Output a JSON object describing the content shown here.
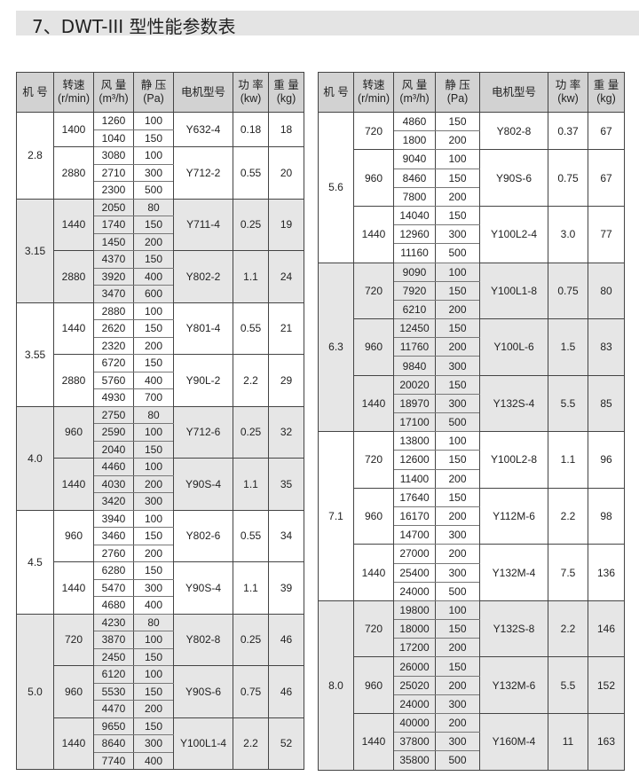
{
  "title": "7、DWT-III 型性能参数表",
  "headers": [
    "机 号",
    "转速\n(r/min)",
    "风 量\n(m³/h)",
    "静 压\n(Pa)",
    "电机型号",
    "功 率\n(kw)",
    "重 量\n(kg)"
  ],
  "left_table": [
    {
      "model": "2.8",
      "speeds": [
        {
          "rpm": "1400",
          "rows": [
            [
              "1260",
              "100"
            ],
            [
              "1040",
              "150"
            ]
          ],
          "motor": "Y632-4",
          "power": "0.18",
          "weight": "18"
        },
        {
          "rpm": "2880",
          "rows": [
            [
              "3080",
              "100"
            ],
            [
              "2710",
              "300"
            ],
            [
              "2300",
              "500"
            ]
          ],
          "motor": "Y712-2",
          "power": "0.55",
          "weight": "20"
        }
      ]
    },
    {
      "model": "3.15",
      "speeds": [
        {
          "rpm": "1440",
          "rows": [
            [
              "2050",
              "80"
            ],
            [
              "1740",
              "150"
            ],
            [
              "1450",
              "200"
            ]
          ],
          "motor": "Y711-4",
          "power": "0.25",
          "weight": "19"
        },
        {
          "rpm": "2880",
          "rows": [
            [
              "4370",
              "150"
            ],
            [
              "3920",
              "400"
            ],
            [
              "3470",
              "600"
            ]
          ],
          "motor": "Y802-2",
          "power": "1.1",
          "weight": "24"
        }
      ]
    },
    {
      "model": "3.55",
      "speeds": [
        {
          "rpm": "1440",
          "rows": [
            [
              "2880",
              "100"
            ],
            [
              "2620",
              "150"
            ],
            [
              "2320",
              "200"
            ]
          ],
          "motor": "Y801-4",
          "power": "0.55",
          "weight": "21"
        },
        {
          "rpm": "2880",
          "rows": [
            [
              "6720",
              "150"
            ],
            [
              "5760",
              "400"
            ],
            [
              "4930",
              "700"
            ]
          ],
          "motor": "Y90L-2",
          "power": "2.2",
          "weight": "29"
        }
      ]
    },
    {
      "model": "4.0",
      "speeds": [
        {
          "rpm": "960",
          "rows": [
            [
              "2750",
              "80"
            ],
            [
              "2590",
              "100"
            ],
            [
              "2040",
              "150"
            ]
          ],
          "motor": "Y712-6",
          "power": "0.25",
          "weight": "32"
        },
        {
          "rpm": "1440",
          "rows": [
            [
              "4460",
              "100"
            ],
            [
              "4030",
              "200"
            ],
            [
              "3420",
              "300"
            ]
          ],
          "motor": "Y90S-4",
          "power": "1.1",
          "weight": "35"
        }
      ]
    },
    {
      "model": "4.5",
      "speeds": [
        {
          "rpm": "960",
          "rows": [
            [
              "3940",
              "100"
            ],
            [
              "3460",
              "150"
            ],
            [
              "2760",
              "200"
            ]
          ],
          "motor": "Y802-6",
          "power": "0.55",
          "weight": "34"
        },
        {
          "rpm": "1440",
          "rows": [
            [
              "6280",
              "150"
            ],
            [
              "5470",
              "300"
            ],
            [
              "4680",
              "400"
            ]
          ],
          "motor": "Y90S-4",
          "power": "1.1",
          "weight": "39"
        }
      ]
    },
    {
      "model": "5.0",
      "speeds": [
        {
          "rpm": "720",
          "rows": [
            [
              "4230",
              "80"
            ],
            [
              "3870",
              "100"
            ],
            [
              "2450",
              "150"
            ]
          ],
          "motor": "Y802-8",
          "power": "0.25",
          "weight": "46"
        },
        {
          "rpm": "960",
          "rows": [
            [
              "6120",
              "100"
            ],
            [
              "5530",
              "150"
            ],
            [
              "4470",
              "200"
            ]
          ],
          "motor": "Y90S-6",
          "power": "0.75",
          "weight": "46"
        },
        {
          "rpm": "1440",
          "rows": [
            [
              "9650",
              "150"
            ],
            [
              "8640",
              "300"
            ],
            [
              "7740",
              "400"
            ]
          ],
          "motor": "Y100L1-4",
          "power": "2.2",
          "weight": "52"
        }
      ]
    }
  ],
  "right_table": [
    {
      "model": "5.6",
      "speeds": [
        {
          "rpm": "720",
          "rows": [
            [
              "4860",
              "150"
            ],
            [
              "1800",
              "200"
            ]
          ],
          "motor": "Y802-8",
          "power": "0.37",
          "weight": "67"
        },
        {
          "rpm": "960",
          "rows": [
            [
              "9040",
              "100"
            ],
            [
              "8460",
              "150"
            ],
            [
              "7800",
              "200"
            ]
          ],
          "motor": "Y90S-6",
          "power": "0.75",
          "weight": "67"
        },
        {
          "rpm": "1440",
          "rows": [
            [
              "14040",
              "150"
            ],
            [
              "12960",
              "300"
            ],
            [
              "11160",
              "500"
            ]
          ],
          "motor": "Y100L2-4",
          "power": "3.0",
          "weight": "77"
        }
      ]
    },
    {
      "model": "6.3",
      "speeds": [
        {
          "rpm": "720",
          "rows": [
            [
              "9090",
              "100"
            ],
            [
              "7920",
              "150"
            ],
            [
              "6210",
              "200"
            ]
          ],
          "motor": "Y100L1-8",
          "power": "0.75",
          "weight": "80"
        },
        {
          "rpm": "960",
          "rows": [
            [
              "12450",
              "150"
            ],
            [
              "11760",
              "200"
            ],
            [
              "9840",
              "300"
            ]
          ],
          "motor": "Y100L-6",
          "power": "1.5",
          "weight": "83"
        },
        {
          "rpm": "1440",
          "rows": [
            [
              "20020",
              "150"
            ],
            [
              "18970",
              "300"
            ],
            [
              "17100",
              "500"
            ]
          ],
          "motor": "Y132S-4",
          "power": "5.5",
          "weight": "85"
        }
      ]
    },
    {
      "model": "7.1",
      "speeds": [
        {
          "rpm": "720",
          "rows": [
            [
              "13800",
              "100"
            ],
            [
              "12600",
              "150"
            ],
            [
              "11400",
              "200"
            ]
          ],
          "motor": "Y100L2-8",
          "power": "1.1",
          "weight": "96"
        },
        {
          "rpm": "960",
          "rows": [
            [
              "17640",
              "150"
            ],
            [
              "16170",
              "200"
            ],
            [
              "14700",
              "300"
            ]
          ],
          "motor": "Y112M-6",
          "power": "2.2",
          "weight": "98"
        },
        {
          "rpm": "1440",
          "rows": [
            [
              "27000",
              "200"
            ],
            [
              "25400",
              "300"
            ],
            [
              "24000",
              "500"
            ]
          ],
          "motor": "Y132M-4",
          "power": "7.5",
          "weight": "136"
        }
      ]
    },
    {
      "model": "8.0",
      "speeds": [
        {
          "rpm": "720",
          "rows": [
            [
              "19800",
              "100"
            ],
            [
              "18000",
              "150"
            ],
            [
              "17200",
              "200"
            ]
          ],
          "motor": "Y132S-8",
          "power": "2.2",
          "weight": "146"
        },
        {
          "rpm": "960",
          "rows": [
            [
              "26000",
              "150"
            ],
            [
              "25020",
              "200"
            ],
            [
              "24000",
              "300"
            ]
          ],
          "motor": "Y132M-6",
          "power": "5.5",
          "weight": "152"
        },
        {
          "rpm": "1440",
          "rows": [
            [
              "40000",
              "200"
            ],
            [
              "37800",
              "300"
            ],
            [
              "35800",
              "500"
            ]
          ],
          "motor": "Y160M-4",
          "power": "11",
          "weight": "163"
        }
      ]
    }
  ]
}
